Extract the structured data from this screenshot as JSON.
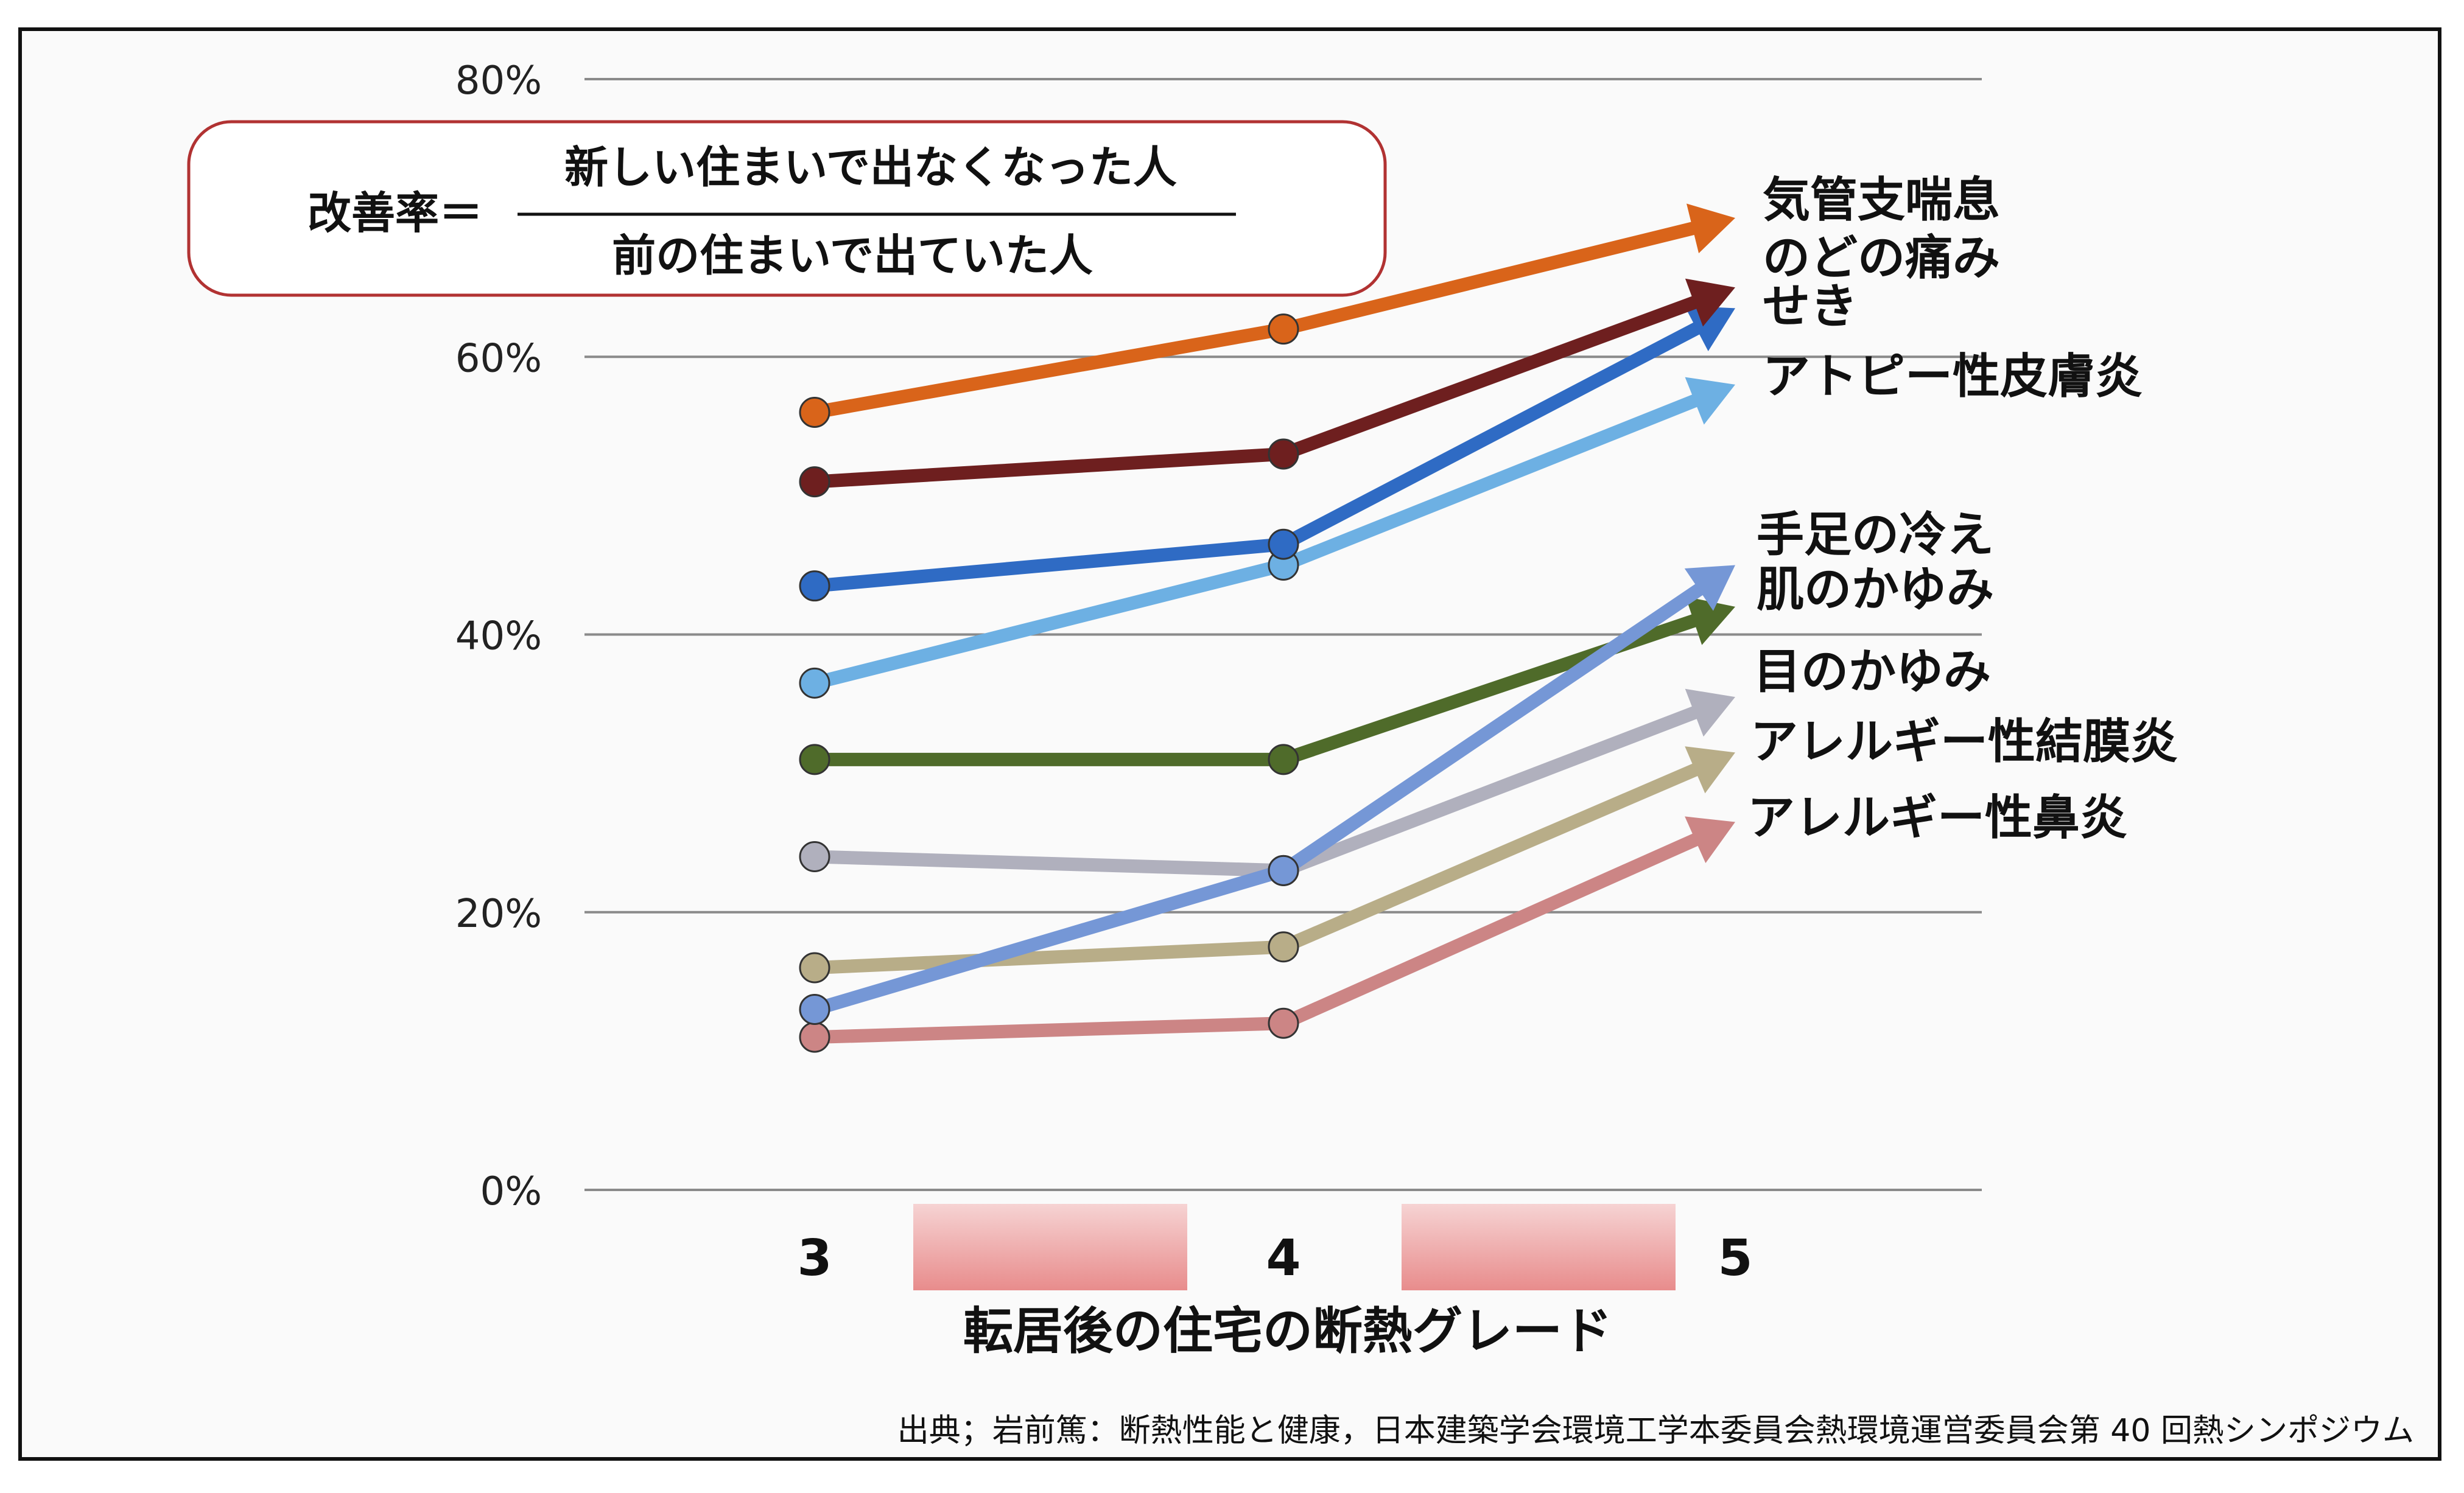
{
  "chart_data": {
    "type": "line",
    "x": [
      "3",
      "4",
      "5"
    ],
    "xlabel": "転居後の住宅の断熱グレード",
    "ylim": [
      0,
      80
    ],
    "yticks": [
      "0%",
      "20%",
      "40%",
      "60%",
      "80%"
    ],
    "grid": true,
    "legend": "labels at line ends (right)",
    "series": [
      {
        "name": "気管支喘息",
        "values": [
          56,
          62,
          70
        ],
        "color": "#d9641a"
      },
      {
        "name": "のどの痛み",
        "values": [
          51,
          53,
          65
        ],
        "color": "#6e1f1f"
      },
      {
        "name": "せき",
        "values": [
          43.5,
          46.5,
          63.5
        ],
        "color": "#2f6bc4"
      },
      {
        "name": "アトピー性皮膚炎",
        "values": [
          36.5,
          45,
          58
        ],
        "color": "#6db0e3"
      },
      {
        "name": "手足の冷え",
        "values": [
          13,
          23,
          45
        ],
        "color": "#7597d6"
      },
      {
        "name": "肌のかゆみ",
        "values": [
          31,
          31,
          42
        ],
        "color": "#4f6b2a"
      },
      {
        "name": "目のかゆみ",
        "values": [
          24,
          23,
          35.5
        ],
        "color": "#b0b0bd"
      },
      {
        "name": "アレルギー性結膜炎",
        "values": [
          16,
          17.5,
          31.5
        ],
        "color": "#b8ad88"
      },
      {
        "name": "アレルギー性鼻炎",
        "values": [
          11,
          12,
          26.5
        ],
        "color": "#cc8585"
      }
    ],
    "annotations": {
      "formula_lhs": "改善率＝",
      "formula_numerator": "新しい住まいで出なくなった人",
      "formula_denominator": "前の住まいで出ていた人",
      "source": "出典；岩前篤：断熱性能と健康，日本建築学会環境工学本委員会熱環境運営委員会第 40 回熱シンポジウム"
    }
  }
}
